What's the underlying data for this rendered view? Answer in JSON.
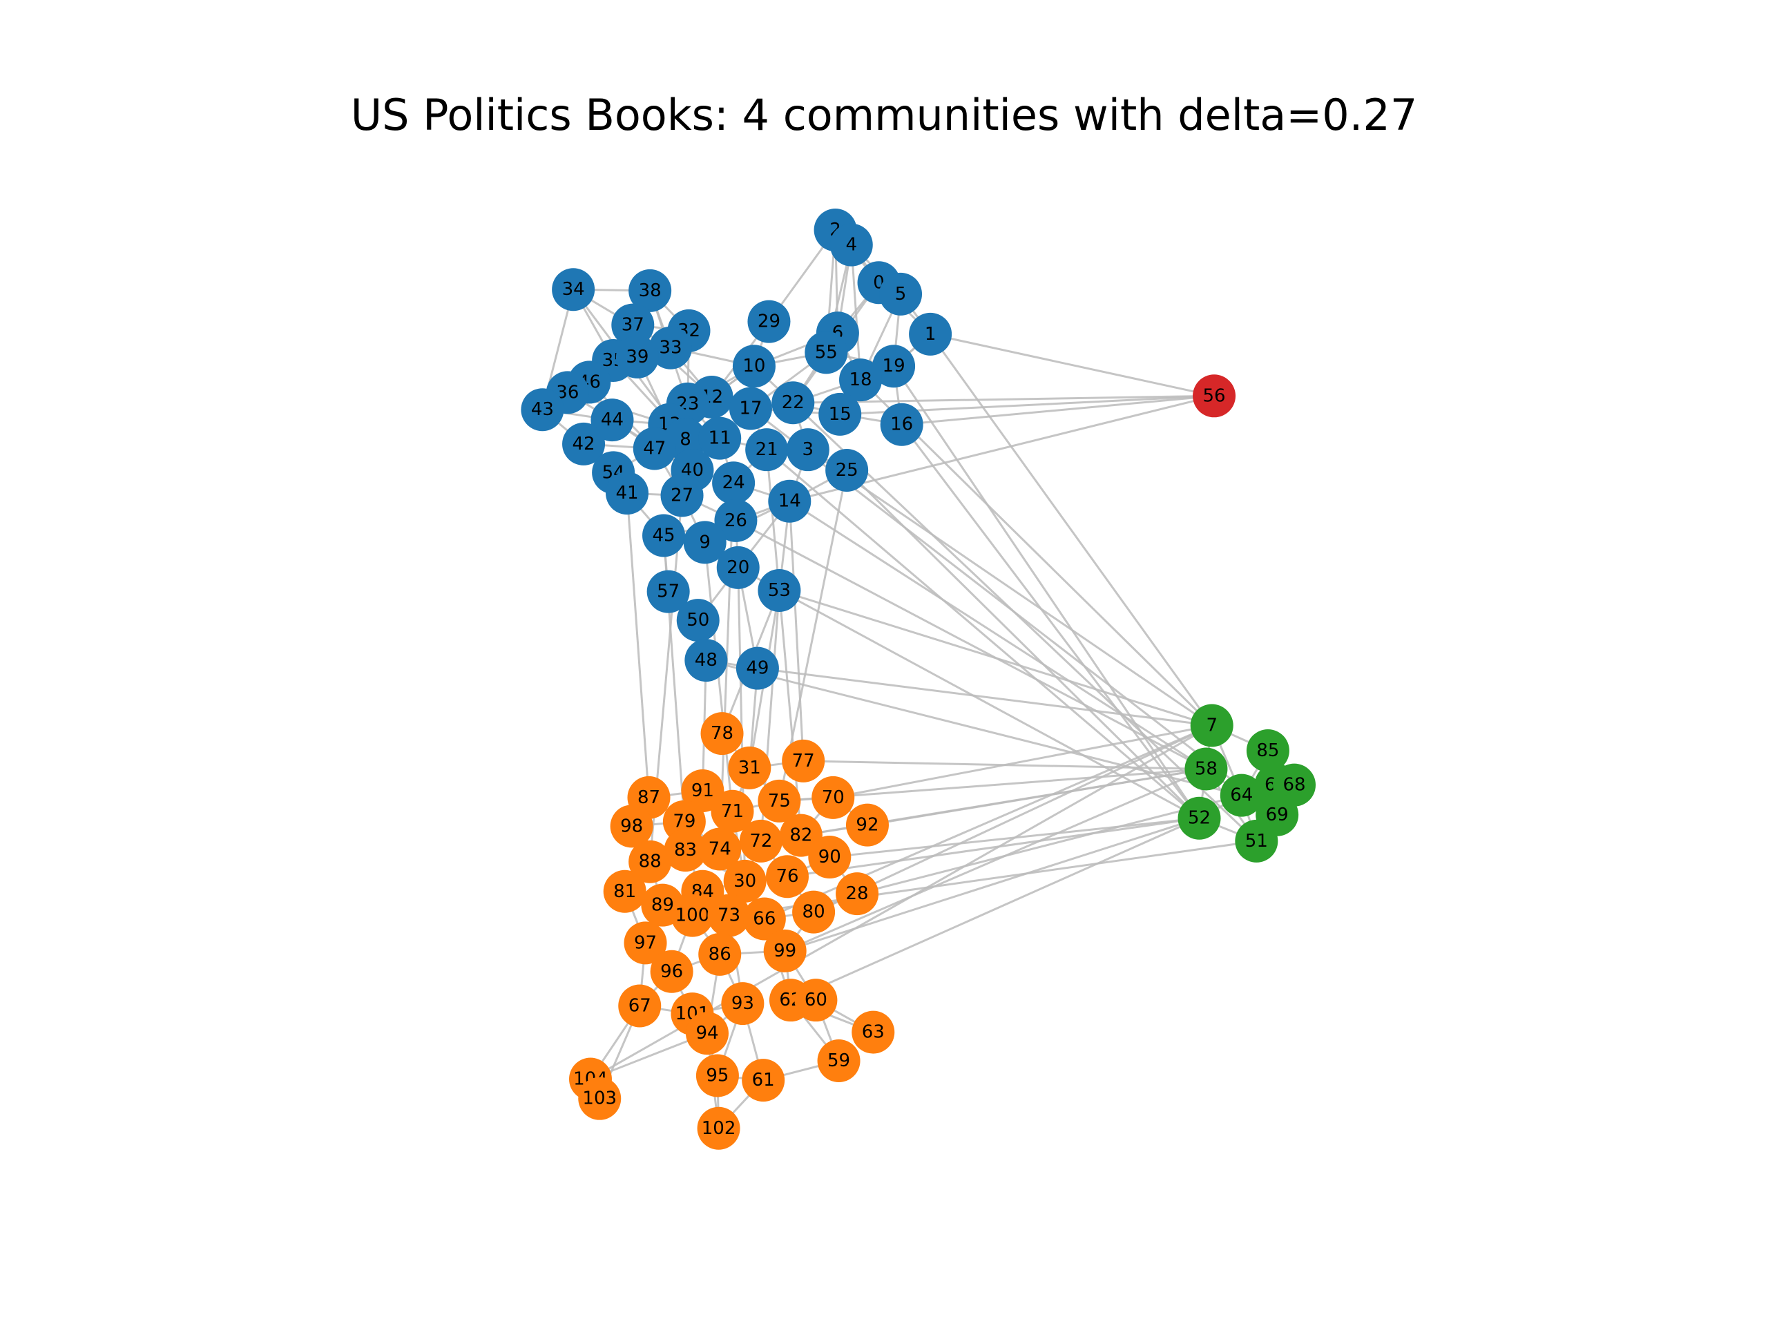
{
  "title": "US Politics Books: 4 communities with delta=0.27",
  "communities": {
    "blue": "#1f77b4",
    "orange": "#ff7f0e",
    "green": "#2ca02c",
    "red": "#d62728"
  },
  "edge_color": "#bbbbbb",
  "nodes": [
    {
      "id": "2",
      "c": "blue"
    },
    {
      "id": "4",
      "c": "blue"
    },
    {
      "id": "0",
      "c": "blue"
    },
    {
      "id": "5",
      "c": "blue"
    },
    {
      "id": "1",
      "c": "blue"
    },
    {
      "id": "34",
      "c": "blue"
    },
    {
      "id": "38",
      "c": "blue"
    },
    {
      "id": "29",
      "c": "blue"
    },
    {
      "id": "6",
      "c": "blue"
    },
    {
      "id": "37",
      "c": "blue"
    },
    {
      "id": "32",
      "c": "blue"
    },
    {
      "id": "33",
      "c": "blue"
    },
    {
      "id": "55",
      "c": "blue"
    },
    {
      "id": "19",
      "c": "blue"
    },
    {
      "id": "35",
      "c": "blue"
    },
    {
      "id": "39",
      "c": "blue"
    },
    {
      "id": "10",
      "c": "blue"
    },
    {
      "id": "18",
      "c": "blue"
    },
    {
      "id": "46",
      "c": "blue"
    },
    {
      "id": "36",
      "c": "blue"
    },
    {
      "id": "12",
      "c": "blue"
    },
    {
      "id": "23",
      "c": "blue"
    },
    {
      "id": "17",
      "c": "blue"
    },
    {
      "id": "22",
      "c": "blue"
    },
    {
      "id": "43",
      "c": "blue"
    },
    {
      "id": "15",
      "c": "blue"
    },
    {
      "id": "44",
      "c": "blue"
    },
    {
      "id": "13",
      "c": "blue"
    },
    {
      "id": "16",
      "c": "blue"
    },
    {
      "id": "8",
      "c": "blue"
    },
    {
      "id": "11",
      "c": "blue"
    },
    {
      "id": "42",
      "c": "blue"
    },
    {
      "id": "47",
      "c": "blue"
    },
    {
      "id": "21",
      "c": "blue"
    },
    {
      "id": "3",
      "c": "blue"
    },
    {
      "id": "40",
      "c": "blue"
    },
    {
      "id": "54",
      "c": "blue"
    },
    {
      "id": "25",
      "c": "blue"
    },
    {
      "id": "24",
      "c": "blue"
    },
    {
      "id": "41",
      "c": "blue"
    },
    {
      "id": "27",
      "c": "blue"
    },
    {
      "id": "14",
      "c": "blue"
    },
    {
      "id": "26",
      "c": "blue"
    },
    {
      "id": "45",
      "c": "blue"
    },
    {
      "id": "9",
      "c": "blue"
    },
    {
      "id": "20",
      "c": "blue"
    },
    {
      "id": "57",
      "c": "blue"
    },
    {
      "id": "53",
      "c": "blue"
    },
    {
      "id": "50",
      "c": "blue"
    },
    {
      "id": "48",
      "c": "blue"
    },
    {
      "id": "49",
      "c": "blue"
    },
    {
      "id": "56",
      "c": "red"
    },
    {
      "id": "7",
      "c": "green"
    },
    {
      "id": "85",
      "c": "green"
    },
    {
      "id": "58",
      "c": "green"
    },
    {
      "id": "64",
      "c": "green"
    },
    {
      "id": "65",
      "c": "green"
    },
    {
      "id": "68",
      "c": "green"
    },
    {
      "id": "52",
      "c": "green"
    },
    {
      "id": "69",
      "c": "green"
    },
    {
      "id": "51",
      "c": "green"
    },
    {
      "id": "78",
      "c": "orange"
    },
    {
      "id": "31",
      "c": "orange"
    },
    {
      "id": "77",
      "c": "orange"
    },
    {
      "id": "87",
      "c": "orange"
    },
    {
      "id": "91",
      "c": "orange"
    },
    {
      "id": "75",
      "c": "orange"
    },
    {
      "id": "70",
      "c": "orange"
    },
    {
      "id": "71",
      "c": "orange"
    },
    {
      "id": "98",
      "c": "orange"
    },
    {
      "id": "79",
      "c": "orange"
    },
    {
      "id": "92",
      "c": "orange"
    },
    {
      "id": "82",
      "c": "orange"
    },
    {
      "id": "72",
      "c": "orange"
    },
    {
      "id": "83",
      "c": "orange"
    },
    {
      "id": "74",
      "c": "orange"
    },
    {
      "id": "88",
      "c": "orange"
    },
    {
      "id": "90",
      "c": "orange"
    },
    {
      "id": "76",
      "c": "orange"
    },
    {
      "id": "30",
      "c": "orange"
    },
    {
      "id": "81",
      "c": "orange"
    },
    {
      "id": "84",
      "c": "orange"
    },
    {
      "id": "28",
      "c": "orange"
    },
    {
      "id": "89",
      "c": "orange"
    },
    {
      "id": "100",
      "c": "orange"
    },
    {
      "id": "73",
      "c": "orange"
    },
    {
      "id": "66",
      "c": "orange"
    },
    {
      "id": "80",
      "c": "orange"
    },
    {
      "id": "97",
      "c": "orange"
    },
    {
      "id": "86",
      "c": "orange"
    },
    {
      "id": "99",
      "c": "orange"
    },
    {
      "id": "96",
      "c": "orange"
    },
    {
      "id": "67",
      "c": "orange"
    },
    {
      "id": "101",
      "c": "orange"
    },
    {
      "id": "93",
      "c": "orange"
    },
    {
      "id": "62",
      "c": "orange"
    },
    {
      "id": "60",
      "c": "orange"
    },
    {
      "id": "94",
      "c": "orange"
    },
    {
      "id": "63",
      "c": "orange"
    },
    {
      "id": "59",
      "c": "orange"
    },
    {
      "id": "104",
      "c": "orange"
    },
    {
      "id": "95",
      "c": "orange"
    },
    {
      "id": "61",
      "c": "orange"
    },
    {
      "id": "103",
      "c": "orange"
    },
    {
      "id": "102",
      "c": "orange"
    }
  ]
}
